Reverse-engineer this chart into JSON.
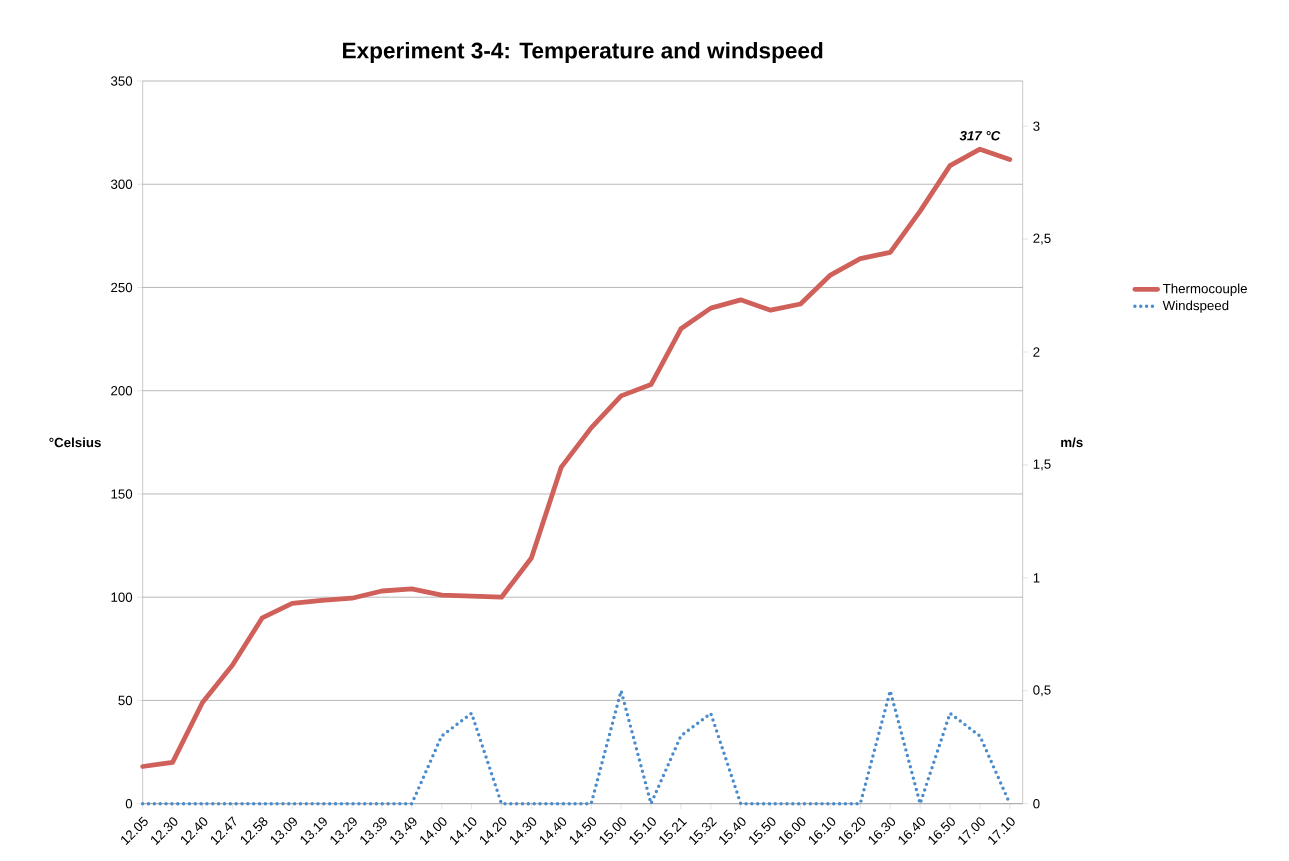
{
  "chart_data": {
    "type": "line",
    "title": "Experiment 3-4: Temperature and windspeed",
    "ylabel": "°Celsius",
    "y2label": "m/s",
    "categories": [
      "12.05",
      "12.30",
      "12.40",
      "12.47",
      "12.58",
      "13.09",
      "13.19",
      "13.29",
      "13.39",
      "13.49",
      "14.00",
      "14.10",
      "14.20",
      "14.30",
      "14.40",
      "14.50",
      "15.00",
      "15.10",
      "15.21",
      "15.32",
      "15.40",
      "15.50",
      "16.00",
      "16.10",
      "16.20",
      "16.30",
      "16.40",
      "16.50",
      "17.00",
      "17.10"
    ],
    "series": [
      {
        "name": "Thermocouple",
        "color": "#d0605a",
        "line_style": "solid",
        "values": [
          18,
          20,
          49,
          67,
          90,
          97,
          98.5,
          99.5,
          103,
          104,
          101,
          100.5,
          100,
          119,
          163,
          182,
          197.5,
          203,
          230,
          240,
          244,
          239,
          242,
          256,
          264,
          267,
          287,
          309,
          317,
          312
        ]
      },
      {
        "name": "Windspeed",
        "color": "#4a8bcb",
        "line_style": "dotted",
        "axis": "y2",
        "values": [
          0,
          0,
          0,
          0,
          0,
          0,
          0,
          0,
          0,
          0,
          0.3,
          0.4,
          0,
          0,
          0,
          0,
          0.5,
          0,
          0.3,
          0.4,
          0,
          0,
          0,
          0,
          0,
          0.5,
          0,
          0.4,
          0.3,
          0
        ]
      }
    ],
    "ylim": [
      0,
      350
    ],
    "yticks": [
      0,
      50,
      100,
      150,
      200,
      250,
      300,
      350
    ],
    "y2lim": [
      0,
      3.2
    ],
    "y2ticks": [
      0,
      {
        "value": 0.5,
        "label": "0,5"
      },
      1,
      {
        "value": 1.5,
        "label": "1,5"
      },
      2,
      {
        "value": 2.5,
        "label": "2,5"
      },
      3
    ],
    "grid": "y",
    "legend": "right",
    "marker": "none",
    "annotations": [
      {
        "text": "317 °C",
        "x": "17.00",
        "y": 317
      }
    ]
  }
}
